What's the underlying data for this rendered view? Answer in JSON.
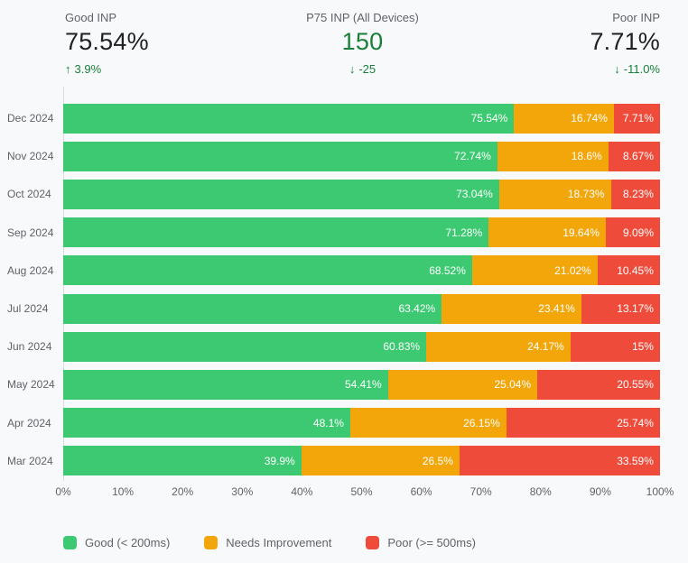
{
  "colors": {
    "good": "#3DC972",
    "needs_improvement": "#F2A60A",
    "poor": "#EE4B3B",
    "accent_green": "#188038",
    "text_dark": "#202124",
    "text_gray": "#5f6368",
    "background": "#f8f9fa",
    "axis_line": "#dadce0"
  },
  "scorecards": [
    {
      "label": "Good INP",
      "value": "75.54%",
      "change": "3.9%",
      "trend": "up",
      "arrow_glyph": "↑"
    },
    {
      "label": "P75 INP (All Devices)",
      "value": "150",
      "change": "-25",
      "trend": "down",
      "arrow_glyph": "↓"
    },
    {
      "label": "Poor INP",
      "value": "7.71%",
      "change": "-11.0%",
      "trend": "down",
      "arrow_glyph": "↓"
    }
  ],
  "chart_data": {
    "type": "bar",
    "stacked": true,
    "orientation": "horizontal",
    "title": "",
    "xlabel": "",
    "ylabel": "",
    "xlim": [
      0,
      100
    ],
    "grid": false,
    "legend_position": "bottom",
    "categories": [
      "Dec 2024",
      "Nov 2024",
      "Oct 2024",
      "Sep 2024",
      "Aug 2024",
      "Jul 2024",
      "Jun 2024",
      "May 2024",
      "Apr 2024",
      "Mar 2024"
    ],
    "series": [
      {
        "id": "good",
        "name": "Good (< 200ms)",
        "color": "#3DC972",
        "values": [
          75.54,
          72.74,
          73.04,
          71.28,
          68.52,
          63.42,
          60.83,
          54.41,
          48.1,
          39.9
        ],
        "labels": [
          "75.54%",
          "72.74%",
          "73.04%",
          "71.28%",
          "68.52%",
          "63.42%",
          "60.83%",
          "54.41%",
          "48.1%",
          "39.9%"
        ]
      },
      {
        "id": "needs-improvement",
        "name": "Needs Improvement",
        "color": "#F2A60A",
        "values": [
          16.74,
          18.6,
          18.73,
          19.64,
          21.02,
          23.41,
          24.17,
          25.04,
          26.15,
          26.5
        ],
        "labels": [
          "16.74%",
          "18.6%",
          "18.73%",
          "19.64%",
          "21.02%",
          "23.41%",
          "24.17%",
          "25.04%",
          "26.15%",
          "26.5%"
        ]
      },
      {
        "id": "poor",
        "name": "Poor (>= 500ms)",
        "color": "#EE4B3B",
        "values": [
          7.71,
          8.67,
          8.23,
          9.09,
          10.45,
          13.17,
          15,
          20.55,
          25.74,
          33.59
        ],
        "labels": [
          "7.71%",
          "8.67%",
          "8.23%",
          "9.09%",
          "10.45%",
          "13.17%",
          "15%",
          "20.55%",
          "25.74%",
          "33.59%"
        ]
      }
    ],
    "x_ticks": [
      "0%",
      "10%",
      "20%",
      "30%",
      "40%",
      "50%",
      "60%",
      "70%",
      "80%",
      "90%",
      "100%"
    ]
  }
}
